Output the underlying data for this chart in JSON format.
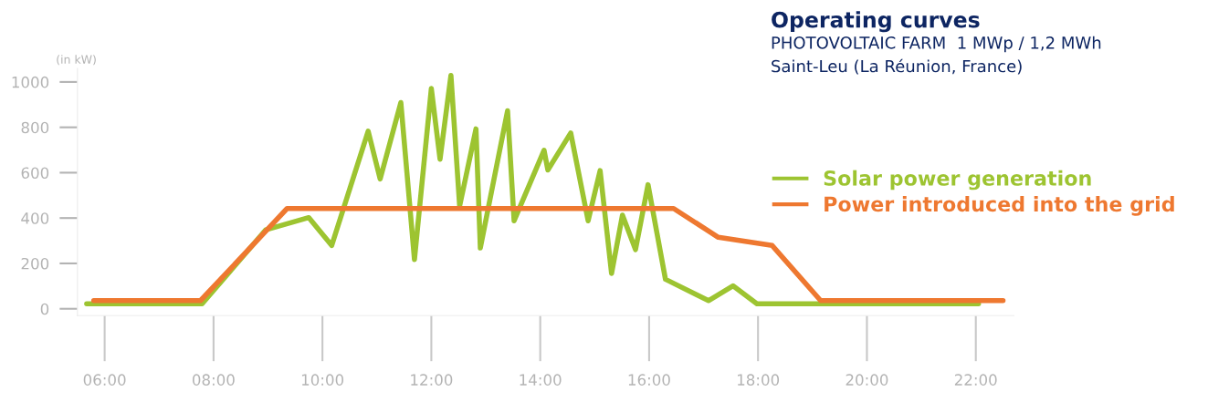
{
  "chart_data": {
    "type": "line",
    "title": "Operating curves",
    "subtitle": "PHOTOVOLTAIC FARM  1 MWp / 1,2 MWh\nSaint-Leu (La Réunion, France)",
    "ylabel": "(in kW)",
    "series": [
      {
        "name": "Solar power generation",
        "color": "#9dc431",
        "x": [
          5.67,
          7.79,
          8.96,
          9.75,
          10.17,
          10.84,
          11.06,
          11.44,
          11.69,
          12.0,
          12.16,
          12.36,
          12.52,
          12.82,
          12.9,
          13.4,
          13.52,
          14.07,
          14.14,
          14.56,
          14.88,
          15.1,
          15.31,
          15.51,
          15.75,
          15.98,
          16.3,
          17.09,
          17.54,
          17.98,
          22.05
        ],
        "values": [
          22,
          22,
          348,
          402,
          279,
          783,
          572,
          909,
          217,
          971,
          659,
          1029,
          453,
          793,
          268,
          873,
          388,
          699,
          612,
          775,
          388,
          609,
          156,
          413,
          261,
          547,
          130,
          36,
          101,
          22,
          22
        ]
      },
      {
        "name": "Power introduced into the grid",
        "color": "#ee7830",
        "x": [
          5.8,
          7.76,
          9.35,
          16.45,
          17.27,
          18.26,
          19.15,
          22.5
        ],
        "values": [
          36,
          36,
          442,
          442,
          315,
          279,
          36,
          36
        ]
      }
    ],
    "xticks": [
      {
        "value": 6,
        "label": "06:00"
      },
      {
        "value": 8,
        "label": "08:00"
      },
      {
        "value": 10,
        "label": "10:00"
      },
      {
        "value": 12,
        "label": "12:00"
      },
      {
        "value": 14,
        "label": "14:00"
      },
      {
        "value": 16,
        "label": "16:00"
      },
      {
        "value": 18,
        "label": "18:00"
      },
      {
        "value": 20,
        "label": "20:00"
      },
      {
        "value": 22,
        "label": "22:00"
      }
    ],
    "yticks": [
      0,
      200,
      400,
      600,
      800,
      1000
    ],
    "xlim": [
      5.5,
      22.7
    ],
    "ylim": [
      -30,
      1060
    ],
    "grid": false,
    "legend": "right",
    "line_style": "solid",
    "marker": "none"
  }
}
